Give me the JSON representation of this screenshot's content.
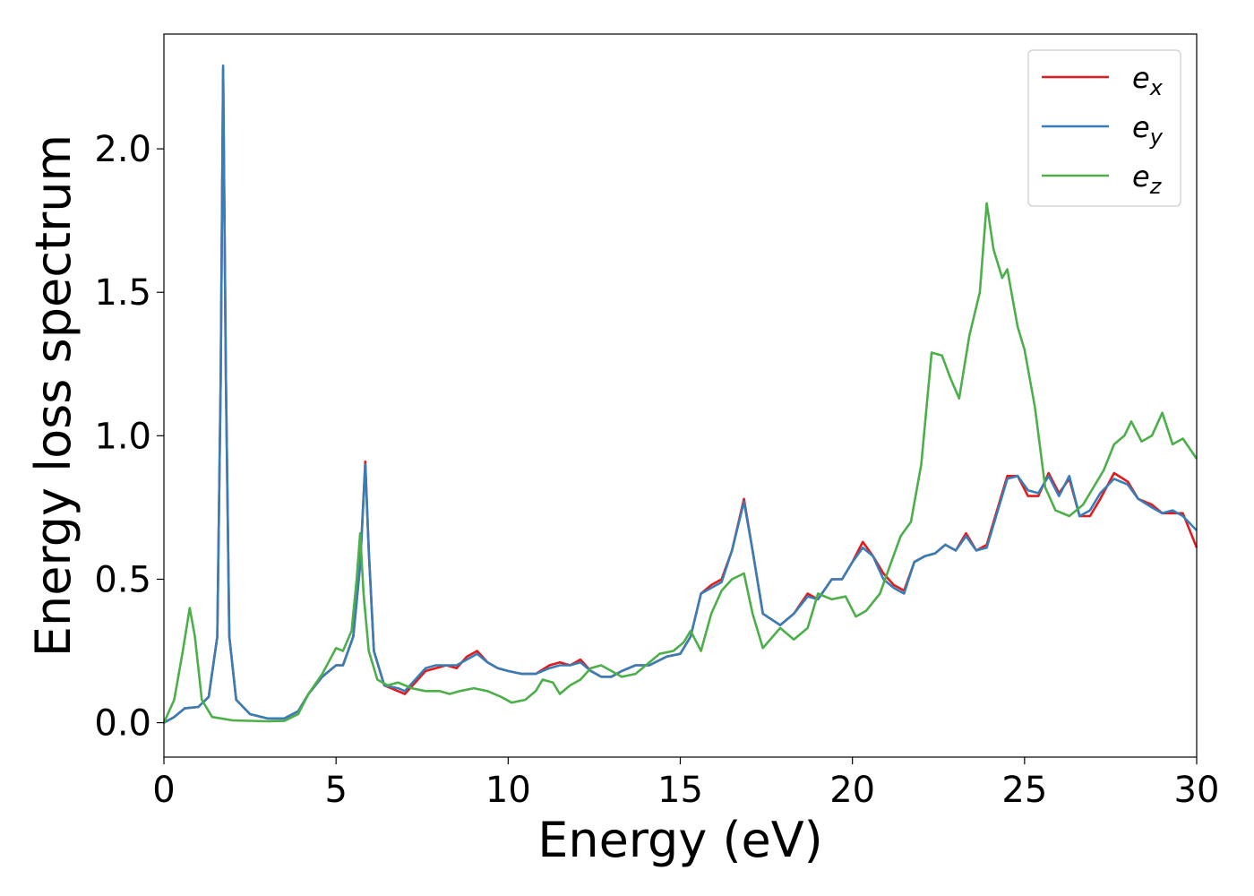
{
  "chart_data": {
    "type": "line",
    "title": "",
    "xlabel": "Energy (eV)",
    "ylabel": "Energy loss spectrum",
    "xlim": [
      0,
      30
    ],
    "ylim": [
      -0.12,
      2.4
    ],
    "xticks": [
      0,
      5,
      10,
      15,
      20,
      25,
      30
    ],
    "xtick_labels": [
      "0",
      "5",
      "10",
      "15",
      "20",
      "25",
      "30"
    ],
    "yticks": [
      0.0,
      0.5,
      1.0,
      1.5,
      2.0
    ],
    "ytick_labels": [
      "0.0",
      "0.5",
      "1.0",
      "1.5",
      "2.0"
    ],
    "grid": false,
    "legend_position": "top-right",
    "series": [
      {
        "name": "e",
        "subscript": "x",
        "color": "#e41a1c",
        "points": [
          [
            0,
            0
          ],
          [
            0.3,
            0.02
          ],
          [
            0.6,
            0.05
          ],
          [
            1.0,
            0.055
          ],
          [
            1.3,
            0.09
          ],
          [
            1.55,
            0.3
          ],
          [
            1.65,
            1.2
          ],
          [
            1.72,
            2.28
          ],
          [
            1.8,
            1.2
          ],
          [
            1.9,
            0.3
          ],
          [
            2.1,
            0.08
          ],
          [
            2.5,
            0.03
          ],
          [
            3.0,
            0.015
          ],
          [
            3.5,
            0.015
          ],
          [
            3.9,
            0.04
          ],
          [
            4.2,
            0.1
          ],
          [
            4.6,
            0.16
          ],
          [
            5.0,
            0.2
          ],
          [
            5.2,
            0.2
          ],
          [
            5.5,
            0.3
          ],
          [
            5.7,
            0.55
          ],
          [
            5.85,
            0.91
          ],
          [
            5.95,
            0.6
          ],
          [
            6.1,
            0.25
          ],
          [
            6.4,
            0.13
          ],
          [
            6.8,
            0.11
          ],
          [
            7.0,
            0.1
          ],
          [
            7.3,
            0.14
          ],
          [
            7.6,
            0.18
          ],
          [
            7.9,
            0.19
          ],
          [
            8.2,
            0.2
          ],
          [
            8.5,
            0.19
          ],
          [
            8.8,
            0.23
          ],
          [
            9.1,
            0.25
          ],
          [
            9.4,
            0.21
          ],
          [
            9.7,
            0.19
          ],
          [
            10.0,
            0.18
          ],
          [
            10.4,
            0.17
          ],
          [
            10.8,
            0.17
          ],
          [
            11.2,
            0.2
          ],
          [
            11.5,
            0.21
          ],
          [
            11.8,
            0.2
          ],
          [
            12.1,
            0.22
          ],
          [
            12.4,
            0.18
          ],
          [
            12.7,
            0.16
          ],
          [
            13.0,
            0.16
          ],
          [
            13.3,
            0.18
          ],
          [
            13.7,
            0.2
          ],
          [
            14.1,
            0.2
          ],
          [
            14.6,
            0.23
          ],
          [
            15.0,
            0.24
          ],
          [
            15.3,
            0.3
          ],
          [
            15.6,
            0.45
          ],
          [
            15.9,
            0.48
          ],
          [
            16.2,
            0.5
          ],
          [
            16.5,
            0.6
          ],
          [
            16.85,
            0.78
          ],
          [
            17.1,
            0.6
          ],
          [
            17.4,
            0.38
          ],
          [
            17.9,
            0.34
          ],
          [
            18.3,
            0.38
          ],
          [
            18.7,
            0.45
          ],
          [
            19.0,
            0.43
          ],
          [
            19.4,
            0.5
          ],
          [
            19.7,
            0.5
          ],
          [
            20.0,
            0.56
          ],
          [
            20.3,
            0.63
          ],
          [
            20.6,
            0.58
          ],
          [
            20.9,
            0.52
          ],
          [
            21.2,
            0.48
          ],
          [
            21.5,
            0.46
          ],
          [
            21.8,
            0.56
          ],
          [
            22.1,
            0.58
          ],
          [
            22.4,
            0.59
          ],
          [
            22.7,
            0.62
          ],
          [
            23.0,
            0.6
          ],
          [
            23.3,
            0.66
          ],
          [
            23.6,
            0.6
          ],
          [
            23.9,
            0.62
          ],
          [
            24.2,
            0.74
          ],
          [
            24.5,
            0.86
          ],
          [
            24.8,
            0.86
          ],
          [
            25.1,
            0.79
          ],
          [
            25.4,
            0.79
          ],
          [
            25.7,
            0.87
          ],
          [
            26.0,
            0.8
          ],
          [
            26.3,
            0.85
          ],
          [
            26.6,
            0.72
          ],
          [
            26.9,
            0.72
          ],
          [
            27.2,
            0.78
          ],
          [
            27.6,
            0.87
          ],
          [
            28.0,
            0.84
          ],
          [
            28.3,
            0.78
          ],
          [
            28.7,
            0.76
          ],
          [
            29.0,
            0.73
          ],
          [
            29.3,
            0.73
          ],
          [
            29.6,
            0.73
          ],
          [
            30.0,
            0.61
          ]
        ]
      },
      {
        "name": "e",
        "subscript": "y",
        "color": "#377eb8",
        "points": [
          [
            0,
            0
          ],
          [
            0.3,
            0.02
          ],
          [
            0.6,
            0.05
          ],
          [
            1.0,
            0.055
          ],
          [
            1.3,
            0.09
          ],
          [
            1.55,
            0.3
          ],
          [
            1.65,
            1.2
          ],
          [
            1.72,
            2.29
          ],
          [
            1.8,
            1.2
          ],
          [
            1.9,
            0.3
          ],
          [
            2.1,
            0.08
          ],
          [
            2.5,
            0.03
          ],
          [
            3.0,
            0.015
          ],
          [
            3.5,
            0.015
          ],
          [
            3.9,
            0.04
          ],
          [
            4.2,
            0.1
          ],
          [
            4.6,
            0.16
          ],
          [
            5.0,
            0.2
          ],
          [
            5.2,
            0.2
          ],
          [
            5.5,
            0.3
          ],
          [
            5.7,
            0.55
          ],
          [
            5.85,
            0.9
          ],
          [
            5.95,
            0.6
          ],
          [
            6.1,
            0.25
          ],
          [
            6.4,
            0.13
          ],
          [
            6.8,
            0.12
          ],
          [
            7.0,
            0.11
          ],
          [
            7.3,
            0.15
          ],
          [
            7.6,
            0.19
          ],
          [
            7.9,
            0.2
          ],
          [
            8.2,
            0.2
          ],
          [
            8.5,
            0.2
          ],
          [
            8.8,
            0.22
          ],
          [
            9.1,
            0.24
          ],
          [
            9.4,
            0.21
          ],
          [
            9.7,
            0.19
          ],
          [
            10.0,
            0.18
          ],
          [
            10.4,
            0.17
          ],
          [
            10.8,
            0.17
          ],
          [
            11.2,
            0.19
          ],
          [
            11.5,
            0.2
          ],
          [
            11.8,
            0.2
          ],
          [
            12.1,
            0.21
          ],
          [
            12.4,
            0.18
          ],
          [
            12.7,
            0.16
          ],
          [
            13.0,
            0.16
          ],
          [
            13.3,
            0.18
          ],
          [
            13.7,
            0.2
          ],
          [
            14.1,
            0.2
          ],
          [
            14.6,
            0.23
          ],
          [
            15.0,
            0.24
          ],
          [
            15.3,
            0.3
          ],
          [
            15.6,
            0.45
          ],
          [
            15.9,
            0.47
          ],
          [
            16.2,
            0.49
          ],
          [
            16.5,
            0.6
          ],
          [
            16.85,
            0.77
          ],
          [
            17.1,
            0.6
          ],
          [
            17.4,
            0.38
          ],
          [
            17.9,
            0.34
          ],
          [
            18.3,
            0.38
          ],
          [
            18.7,
            0.44
          ],
          [
            19.0,
            0.43
          ],
          [
            19.4,
            0.5
          ],
          [
            19.7,
            0.5
          ],
          [
            20.0,
            0.56
          ],
          [
            20.3,
            0.61
          ],
          [
            20.6,
            0.58
          ],
          [
            20.9,
            0.5
          ],
          [
            21.2,
            0.47
          ],
          [
            21.5,
            0.45
          ],
          [
            21.8,
            0.56
          ],
          [
            22.1,
            0.58
          ],
          [
            22.4,
            0.59
          ],
          [
            22.7,
            0.62
          ],
          [
            23.0,
            0.6
          ],
          [
            23.3,
            0.65
          ],
          [
            23.6,
            0.6
          ],
          [
            23.9,
            0.61
          ],
          [
            24.2,
            0.73
          ],
          [
            24.5,
            0.85
          ],
          [
            24.8,
            0.86
          ],
          [
            25.1,
            0.81
          ],
          [
            25.4,
            0.8
          ],
          [
            25.7,
            0.86
          ],
          [
            26.0,
            0.79
          ],
          [
            26.3,
            0.86
          ],
          [
            26.6,
            0.72
          ],
          [
            26.9,
            0.74
          ],
          [
            27.2,
            0.8
          ],
          [
            27.6,
            0.85
          ],
          [
            28.0,
            0.83
          ],
          [
            28.3,
            0.78
          ],
          [
            28.7,
            0.75
          ],
          [
            29.0,
            0.73
          ],
          [
            29.3,
            0.74
          ],
          [
            29.6,
            0.72
          ],
          [
            30.0,
            0.67
          ]
        ]
      },
      {
        "name": "e",
        "subscript": "z",
        "color": "#4daf4a",
        "points": [
          [
            0,
            0
          ],
          [
            0.3,
            0.08
          ],
          [
            0.55,
            0.25
          ],
          [
            0.75,
            0.4
          ],
          [
            0.9,
            0.3
          ],
          [
            1.1,
            0.08
          ],
          [
            1.4,
            0.02
          ],
          [
            2.0,
            0.008
          ],
          [
            3.0,
            0.005
          ],
          [
            3.5,
            0.006
          ],
          [
            3.9,
            0.03
          ],
          [
            4.2,
            0.1
          ],
          [
            4.6,
            0.17
          ],
          [
            5.0,
            0.26
          ],
          [
            5.2,
            0.25
          ],
          [
            5.45,
            0.32
          ],
          [
            5.6,
            0.5
          ],
          [
            5.7,
            0.66
          ],
          [
            5.8,
            0.45
          ],
          [
            5.95,
            0.25
          ],
          [
            6.2,
            0.15
          ],
          [
            6.5,
            0.13
          ],
          [
            6.8,
            0.14
          ],
          [
            7.2,
            0.12
          ],
          [
            7.6,
            0.11
          ],
          [
            8.0,
            0.11
          ],
          [
            8.3,
            0.1
          ],
          [
            8.6,
            0.11
          ],
          [
            9.0,
            0.12
          ],
          [
            9.4,
            0.11
          ],
          [
            9.8,
            0.09
          ],
          [
            10.1,
            0.07
          ],
          [
            10.5,
            0.08
          ],
          [
            10.8,
            0.11
          ],
          [
            11.0,
            0.15
          ],
          [
            11.3,
            0.14
          ],
          [
            11.5,
            0.1
          ],
          [
            11.8,
            0.13
          ],
          [
            12.1,
            0.15
          ],
          [
            12.4,
            0.19
          ],
          [
            12.7,
            0.2
          ],
          [
            13.0,
            0.18
          ],
          [
            13.3,
            0.16
          ],
          [
            13.7,
            0.17
          ],
          [
            14.0,
            0.2
          ],
          [
            14.4,
            0.24
          ],
          [
            14.8,
            0.25
          ],
          [
            15.1,
            0.28
          ],
          [
            15.3,
            0.32
          ],
          [
            15.6,
            0.25
          ],
          [
            15.9,
            0.38
          ],
          [
            16.2,
            0.46
          ],
          [
            16.5,
            0.5
          ],
          [
            16.85,
            0.52
          ],
          [
            17.1,
            0.38
          ],
          [
            17.4,
            0.26
          ],
          [
            17.9,
            0.33
          ],
          [
            18.3,
            0.29
          ],
          [
            18.7,
            0.33
          ],
          [
            19.0,
            0.45
          ],
          [
            19.4,
            0.43
          ],
          [
            19.8,
            0.44
          ],
          [
            20.1,
            0.37
          ],
          [
            20.4,
            0.39
          ],
          [
            20.8,
            0.45
          ],
          [
            21.1,
            0.55
          ],
          [
            21.4,
            0.65
          ],
          [
            21.7,
            0.7
          ],
          [
            22.0,
            0.9
          ],
          [
            22.3,
            1.29
          ],
          [
            22.6,
            1.28
          ],
          [
            22.85,
            1.2
          ],
          [
            23.1,
            1.13
          ],
          [
            23.4,
            1.35
          ],
          [
            23.7,
            1.5
          ],
          [
            23.9,
            1.81
          ],
          [
            24.1,
            1.65
          ],
          [
            24.35,
            1.55
          ],
          [
            24.5,
            1.58
          ],
          [
            24.8,
            1.38
          ],
          [
            25.0,
            1.3
          ],
          [
            25.3,
            1.1
          ],
          [
            25.6,
            0.82
          ],
          [
            25.9,
            0.74
          ],
          [
            26.3,
            0.72
          ],
          [
            26.7,
            0.76
          ],
          [
            27.0,
            0.82
          ],
          [
            27.3,
            0.88
          ],
          [
            27.6,
            0.97
          ],
          [
            27.9,
            1.0
          ],
          [
            28.1,
            1.05
          ],
          [
            28.4,
            0.98
          ],
          [
            28.7,
            1.0
          ],
          [
            29.0,
            1.08
          ],
          [
            29.3,
            0.97
          ],
          [
            29.6,
            0.99
          ],
          [
            30.0,
            0.92
          ]
        ]
      }
    ]
  }
}
